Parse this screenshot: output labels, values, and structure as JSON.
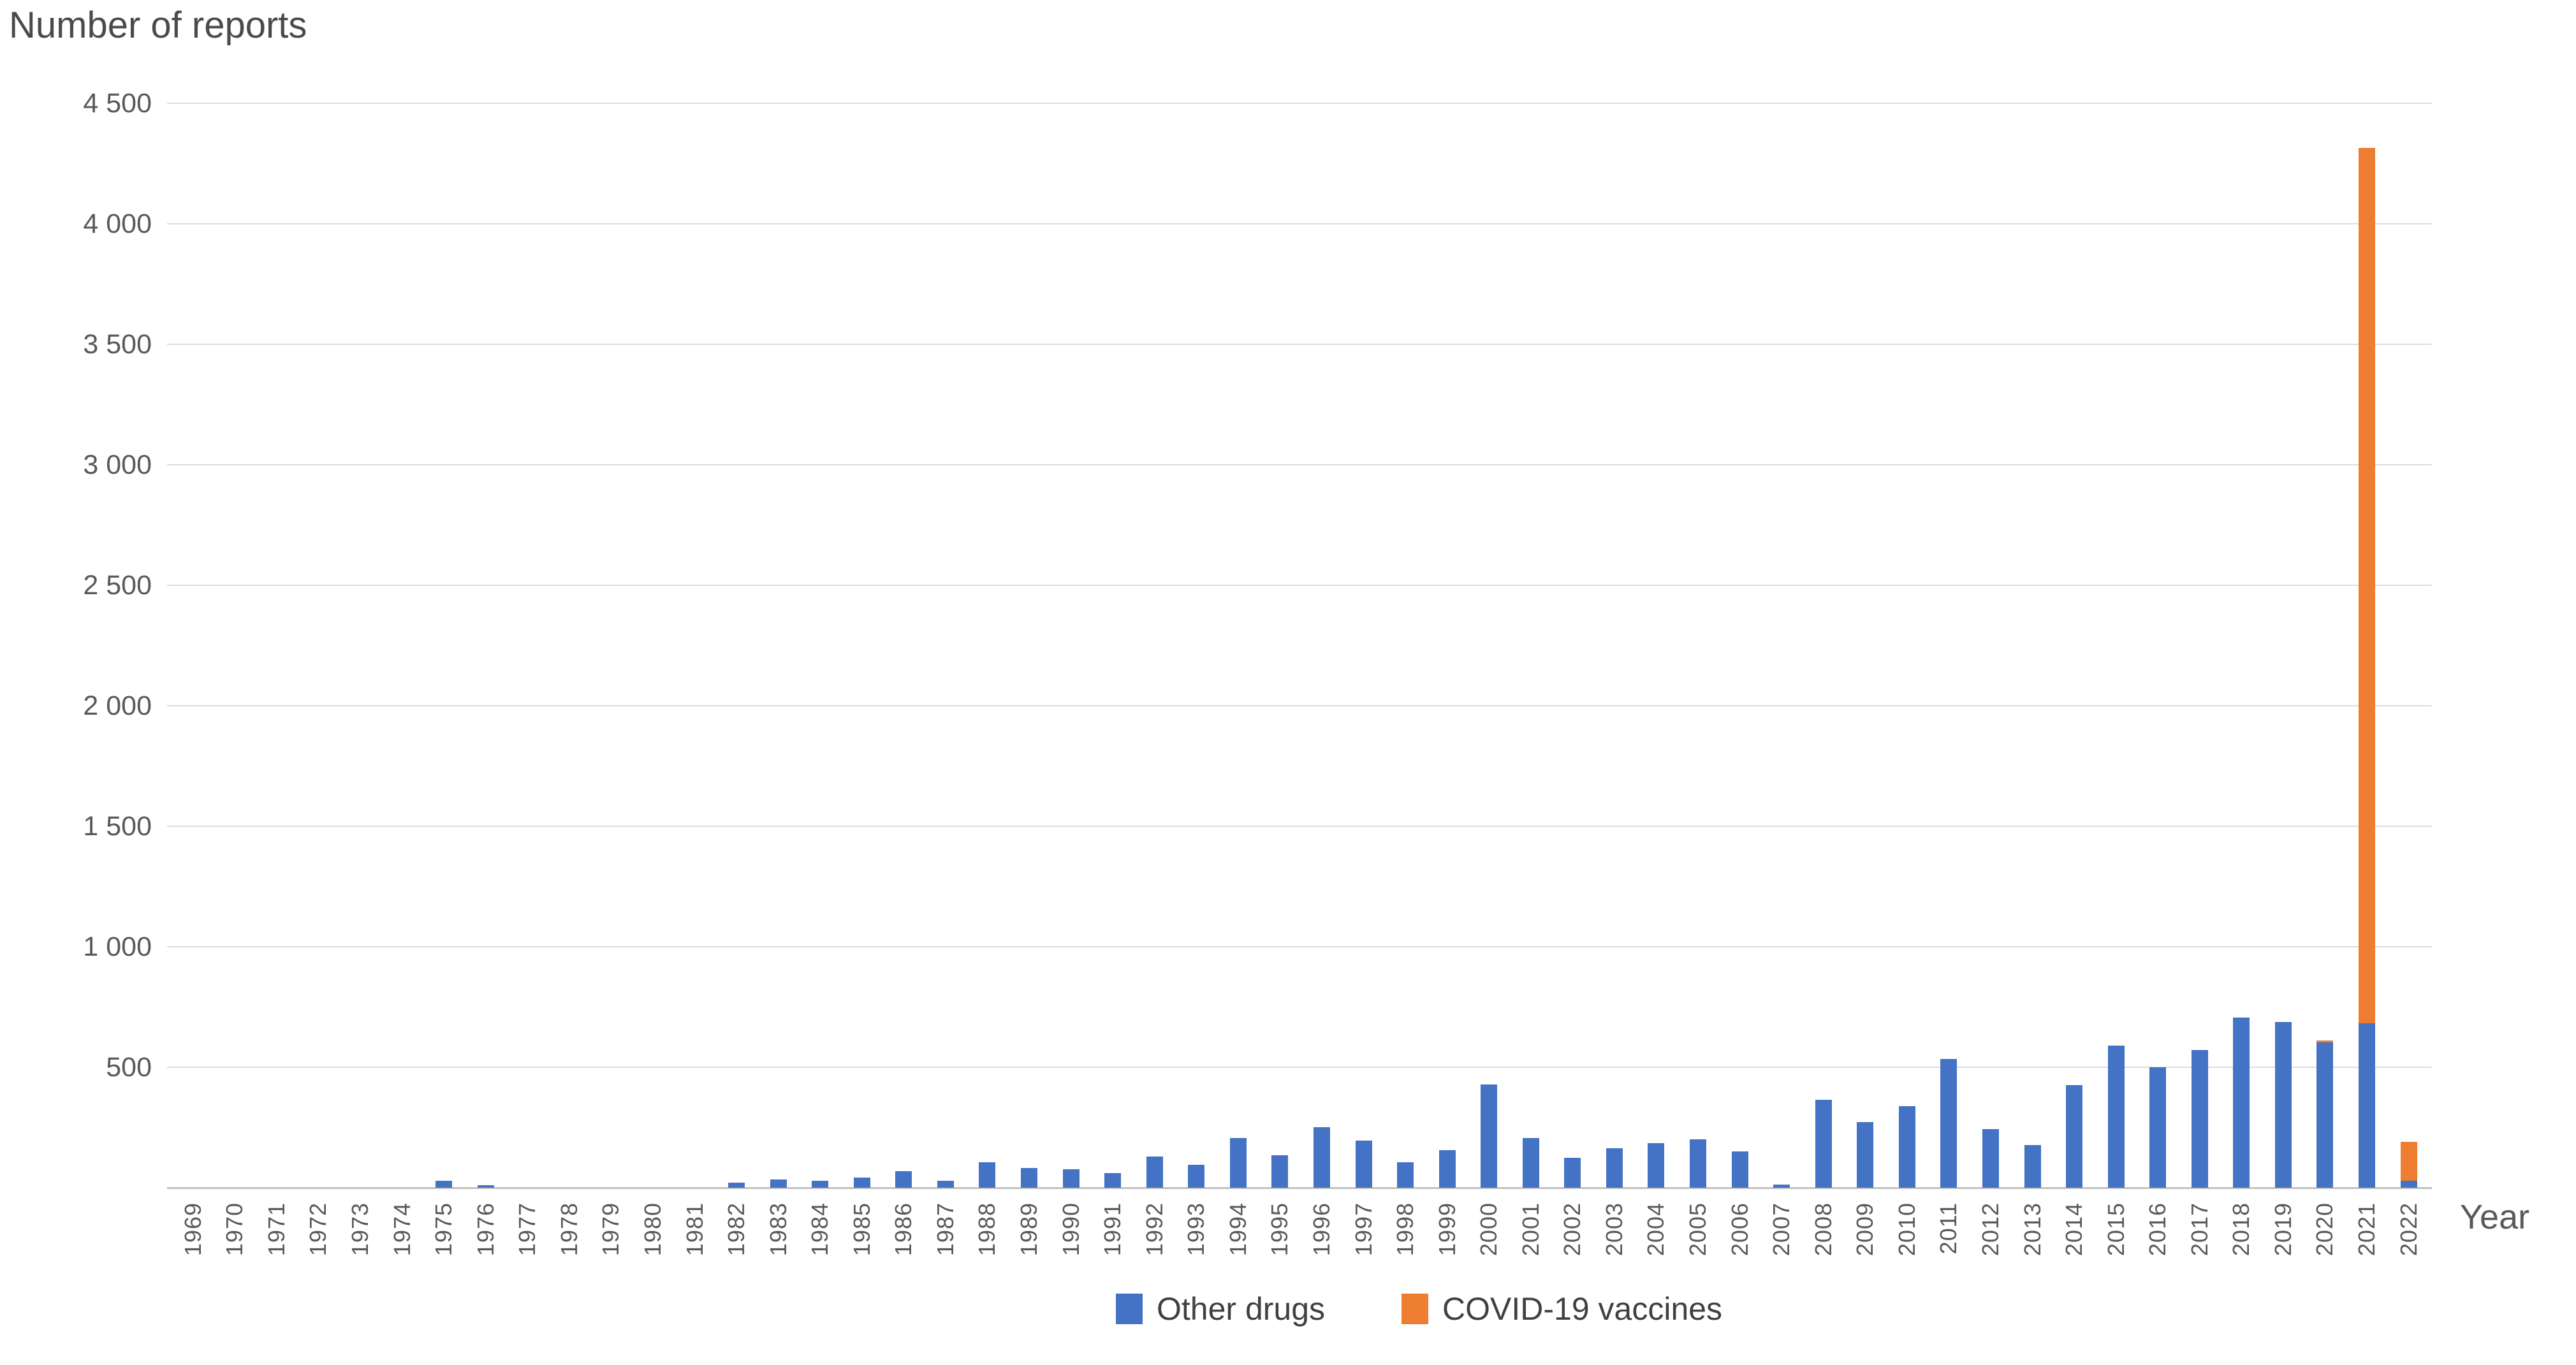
{
  "title": "Number of reports",
  "x_axis_title": "Year",
  "colors": {
    "other_drugs": "#4472C4",
    "covid_vaccines": "#ED7D31",
    "gridline": "#DCDCDC",
    "axis_line": "#C2C2C2",
    "axis_text": "#595959",
    "title_text": "#4A4A4A"
  },
  "legend": {
    "items": [
      {
        "label": "Other drugs",
        "color": "#4472C4"
      },
      {
        "label": "COVID-19 vaccines",
        "color": "#ED7D31"
      }
    ]
  },
  "y_axis": {
    "ticks": [
      {
        "value": 4500,
        "label": "4 500"
      },
      {
        "value": 4000,
        "label": "4 000"
      },
      {
        "value": 3500,
        "label": "3 500"
      },
      {
        "value": 3000,
        "label": "3 000"
      },
      {
        "value": 2500,
        "label": "2 500"
      },
      {
        "value": 2000,
        "label": "2 000"
      },
      {
        "value": 1500,
        "label": "1 500"
      },
      {
        "value": 1000,
        "label": "1 000"
      },
      {
        "value": 500,
        "label": "500"
      }
    ]
  },
  "chart_data": {
    "type": "bar",
    "stacked": true,
    "title": "Number of reports",
    "xlabel": "Year",
    "ylabel": "Number of reports",
    "ylim": [
      0,
      4500
    ],
    "ytick_step": 500,
    "grid": true,
    "legend_position": "bottom",
    "categories": [
      "1969",
      "1970",
      "1971",
      "1972",
      "1973",
      "1974",
      "1975",
      "1976",
      "1977",
      "1978",
      "1979",
      "1980",
      "1981",
      "1982",
      "1983",
      "1984",
      "1985",
      "1986",
      "1987",
      "1988",
      "1989",
      "1990",
      "1991",
      "1992",
      "1993",
      "1994",
      "1995",
      "1996",
      "1997",
      "1998",
      "1999",
      "2000",
      "2001",
      "2002",
      "2003",
      "2004",
      "2005",
      "2006",
      "2007",
      "2008",
      "2009",
      "2010",
      "2011",
      "2012",
      "2013",
      "2014",
      "2015",
      "2016",
      "2017",
      "2018",
      "2019",
      "2020",
      "2021",
      "2022"
    ],
    "series": [
      {
        "name": "Other drugs",
        "color": "#4472C4",
        "values": [
          0,
          0,
          0,
          0,
          0,
          0,
          30,
          10,
          0,
          0,
          0,
          0,
          0,
          22,
          35,
          28,
          42,
          68,
          28,
          105,
          82,
          77,
          60,
          129,
          96,
          206,
          134,
          252,
          197,
          107,
          156,
          428,
          207,
          125,
          164,
          186,
          202,
          151,
          14,
          366,
          272,
          338,
          534,
          243,
          177,
          427,
          591,
          500,
          572,
          707,
          689,
          604,
          683,
          30
        ]
      },
      {
        "name": "COVID-19 vaccines",
        "color": "#ED7D31",
        "values": [
          0,
          0,
          0,
          0,
          0,
          0,
          0,
          0,
          0,
          0,
          0,
          0,
          0,
          0,
          0,
          0,
          0,
          0,
          0,
          0,
          0,
          0,
          0,
          0,
          0,
          0,
          0,
          0,
          0,
          0,
          0,
          0,
          0,
          0,
          0,
          0,
          0,
          0,
          0,
          0,
          0,
          0,
          0,
          0,
          0,
          0,
          0,
          0,
          0,
          0,
          0,
          8,
          3632,
          161
        ]
      }
    ]
  }
}
